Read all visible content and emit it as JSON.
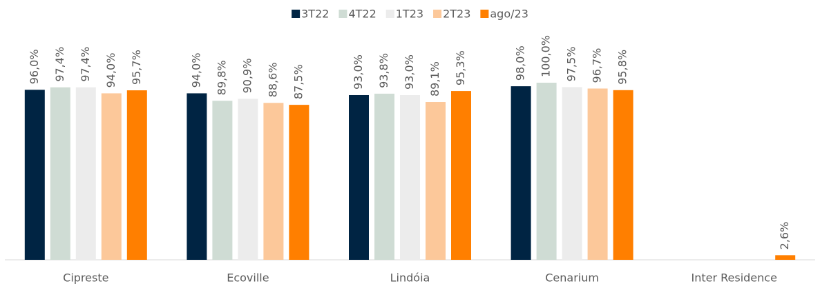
{
  "chart_data": {
    "type": "bar",
    "categories": [
      "Cipreste",
      "Ecoville",
      "Lindóia",
      "Cenarium",
      "Inter Residence"
    ],
    "series": [
      {
        "name": "3T22",
        "color": "#002443",
        "values": [
          96.0,
          94.0,
          93.0,
          98.0,
          null
        ],
        "value_labels": [
          "96,0%",
          "94,0%",
          "93,0%",
          "98,0%",
          null
        ]
      },
      {
        "name": "4T22",
        "color": "#cfdcd4",
        "values": [
          97.4,
          89.8,
          93.8,
          100.0,
          null
        ],
        "value_labels": [
          "97,4%",
          "89,8%",
          "93,8%",
          "100,0%",
          null
        ]
      },
      {
        "name": "1T23",
        "color": "#ececec",
        "values": [
          97.4,
          90.9,
          93.0,
          97.5,
          null
        ],
        "value_labels": [
          "97,4%",
          "90,9%",
          "93,0%",
          "97,5%",
          null
        ]
      },
      {
        "name": "2T23",
        "color": "#fcc89a",
        "values": [
          94.0,
          88.6,
          89.1,
          96.7,
          null
        ],
        "value_labels": [
          "94,0%",
          "88,6%",
          "89,1%",
          "96,7%",
          null
        ]
      },
      {
        "name": "ago/23",
        "color": "#ff7f00",
        "values": [
          95.7,
          87.5,
          95.3,
          95.8,
          2.6
        ],
        "value_labels": [
          "95,7%",
          "87,5%",
          "95,3%",
          "95,8%",
          "2,6%"
        ]
      }
    ],
    "ylim": [
      0,
      100
    ],
    "legend": "top"
  }
}
